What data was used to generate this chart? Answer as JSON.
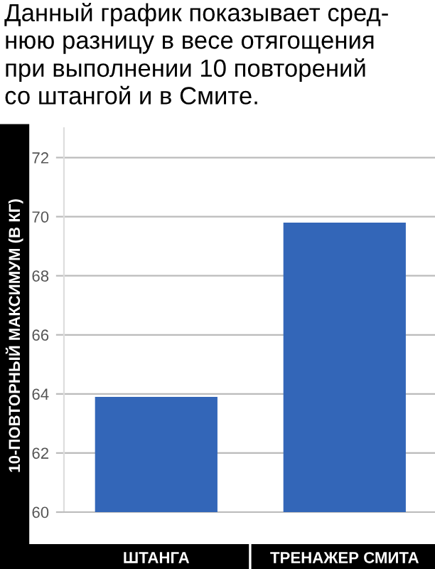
{
  "chart_data": {
    "type": "bar",
    "title": "Данный график показывает сред-\nнюю разницу в весе отягощения\nпри выполнении 10 повторений\nсо штангой и в Смите.",
    "ylabel": "10-ПОВТОРНЫЙ МАКСИМУМ (В КГ)",
    "categories": [
      "ШТАНГА",
      "ТРЕНАЖЕР СМИТА"
    ],
    "values": [
      63.9,
      69.8
    ],
    "color": "#3366b8",
    "ylim": [
      60,
      73
    ],
    "yticks": [
      60,
      62,
      64,
      66,
      68,
      70,
      72
    ],
    "grid": "y"
  }
}
